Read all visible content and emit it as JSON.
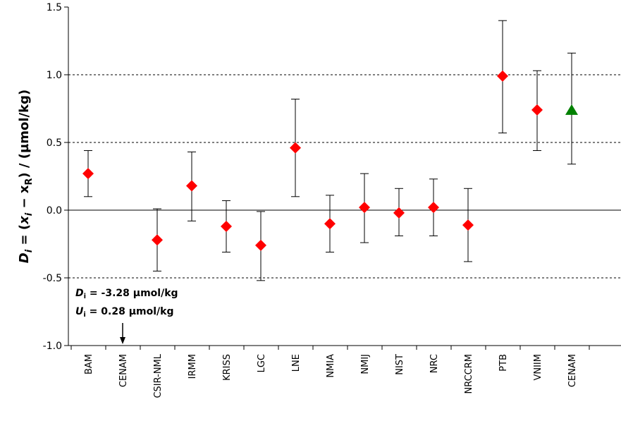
{
  "chart_data": {
    "type": "scatter",
    "ylabel": "D_i = (x_i − x_R) / (µmol/kg)",
    "ylabel_parts": {
      "D": "D",
      "i": "i",
      "eq": " = (",
      "x": "x",
      "xi_sub": "i",
      "minus": " − ",
      "xr": "x",
      "xr_sub": "R",
      "tail": ") / (µmol/kg)"
    },
    "ylim": [
      -1.0,
      1.5
    ],
    "yticks": [
      -1.0,
      -0.5,
      0.0,
      0.5,
      1.0,
      1.5
    ],
    "ytick_labels": [
      "-1.0",
      "-0.5",
      "0.0",
      "0.5",
      "1.0",
      "1.5"
    ],
    "gridlines": [
      -0.5,
      0.5,
      1.0
    ],
    "zero_line": 0.0,
    "categories": [
      "BAM",
      "CENAM",
      "CSIR-NML",
      "IRMM",
      "KRISS",
      "LGC",
      "LNE",
      "NMIA",
      "NMIJ",
      "NIST",
      "NRC",
      "NRCCRM",
      "PTB",
      "VNIIM",
      "CENAM"
    ],
    "points": [
      {
        "category": "BAM",
        "index": 0,
        "y": 0.27,
        "low": 0.1,
        "high": 0.44,
        "marker": "diamond",
        "color": "#ff0000"
      },
      {
        "category": "CSIR-NML",
        "index": 2,
        "y": -0.22,
        "low": -0.45,
        "high": 0.01,
        "marker": "diamond",
        "color": "#ff0000"
      },
      {
        "category": "IRMM",
        "index": 3,
        "y": 0.18,
        "low": -0.08,
        "high": 0.43,
        "marker": "diamond",
        "color": "#ff0000"
      },
      {
        "category": "KRISS",
        "index": 4,
        "y": -0.12,
        "low": -0.31,
        "high": 0.07,
        "marker": "diamond",
        "color": "#ff0000"
      },
      {
        "category": "LGC",
        "index": 5,
        "y": -0.26,
        "low": -0.52,
        "high": -0.01,
        "marker": "diamond",
        "color": "#ff0000"
      },
      {
        "category": "LNE",
        "index": 6,
        "y": 0.46,
        "low": 0.1,
        "high": 0.82,
        "marker": "diamond",
        "color": "#ff0000"
      },
      {
        "category": "NMIA",
        "index": 7,
        "y": -0.1,
        "low": -0.31,
        "high": 0.11,
        "marker": "diamond",
        "color": "#ff0000"
      },
      {
        "category": "NMIJ",
        "index": 8,
        "y": 0.02,
        "low": -0.24,
        "high": 0.27,
        "marker": "diamond",
        "color": "#ff0000"
      },
      {
        "category": "NIST",
        "index": 9,
        "y": -0.02,
        "low": -0.19,
        "high": 0.16,
        "marker": "diamond",
        "color": "#ff0000"
      },
      {
        "category": "NRC",
        "index": 10,
        "y": 0.02,
        "low": -0.19,
        "high": 0.23,
        "marker": "diamond",
        "color": "#ff0000"
      },
      {
        "category": "NRCCRM",
        "index": 11,
        "y": -0.11,
        "low": -0.38,
        "high": 0.16,
        "marker": "diamond",
        "color": "#ff0000"
      },
      {
        "category": "PTB",
        "index": 12,
        "y": 0.99,
        "low": 0.57,
        "high": 1.4,
        "marker": "diamond",
        "color": "#ff0000"
      },
      {
        "category": "VNIIM",
        "index": 13,
        "y": 0.74,
        "low": 0.44,
        "high": 1.03,
        "marker": "diamond",
        "color": "#ff0000"
      },
      {
        "category": "CENAM",
        "index": 14,
        "y": 0.74,
        "low": 0.34,
        "high": 1.16,
        "marker": "triangle",
        "color": "#008000"
      }
    ],
    "offscale_note": {
      "category": "CENAM",
      "index": 1,
      "line1_symbol": "D",
      "line1_sub": "i",
      "line1_text": " = -3.28 µmol/kg",
      "line2_symbol": "U",
      "line2_sub": "i",
      "line2_text": " = 0.28 µmol/kg"
    }
  }
}
